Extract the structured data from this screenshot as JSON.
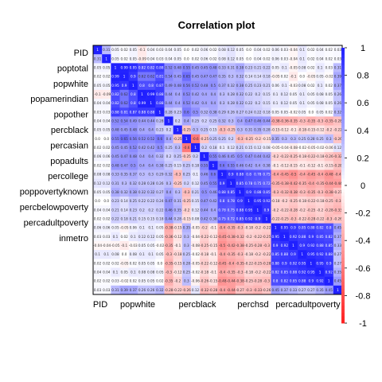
{
  "chart_data": {
    "type": "heatmap",
    "title": "Correlation plot",
    "variables": [
      "PID",
      "poptotal",
      "popwhite",
      "popamerindian",
      "popother",
      "percblack",
      "percasian",
      "popadults",
      "percollege",
      "poppovertyknown",
      "percbelowpoverty",
      "percadultpoverty",
      "inmetro"
    ],
    "x_tick_labels": [
      "PID",
      "popwhite",
      "percblack",
      "perchsd",
      "percadultpoverty"
    ],
    "colorbar": {
      "min": -1,
      "max": 1,
      "ticks": [
        "1",
        "0.8",
        "0.6",
        "0.4",
        "0.2",
        "0",
        "-0.2",
        "-0.4",
        "-0.6",
        "-0.8",
        "-1"
      ]
    },
    "colors": {
      "positive": "#2020ff",
      "negative": "#ff2020",
      "neutral": "#ffffff",
      "frame": "#000000"
    },
    "matrix": [
      [
        1.0,
        0.31,
        0.05,
        0.02,
        0.05,
        -0.1,
        0.04,
        0.03,
        0.04,
        0.05,
        0.0,
        0.02,
        0.06,
        0.02,
        0.08,
        0.12,
        0.05,
        0.0,
        0.04,
        0.02,
        0.06,
        0.03,
        -0.04,
        0.1,
        0.02,
        0.04,
        0.02,
        0.03
      ],
      [
        0.31,
        1.0,
        0.05,
        0.02,
        0.05,
        -0.09,
        0.04,
        0.03,
        0.04,
        0.05,
        0.0,
        0.02,
        0.06,
        0.02,
        0.08,
        0.12,
        0.05,
        0.0,
        0.04,
        0.02,
        0.06,
        0.03,
        -0.04,
        0.1,
        0.02,
        0.04,
        0.02,
        0.03
      ],
      [
        0.05,
        0.05,
        1.0,
        0.99,
        0.95,
        0.82,
        0.82,
        0.88,
        0.52,
        0.48,
        0.55,
        0.45,
        0.45,
        0.48,
        0.33,
        0.31,
        0.38,
        0.23,
        0.21,
        0.22,
        0.05,
        0.1,
        -0.05,
        0.08,
        0.02,
        0.1,
        0.03,
        0.31
      ],
      [
        0.02,
        0.02,
        0.99,
        1.0,
        0.9,
        0.62,
        0.62,
        0.81,
        0.54,
        0.45,
        0.65,
        0.45,
        0.47,
        0.47,
        0.35,
        0.3,
        0.32,
        0.14,
        0.14,
        0.18,
        -0.05,
        0.02,
        -0.1,
        0.0,
        -0.05,
        0.05,
        -0.02,
        0.39
      ],
      [
        0.05,
        0.05,
        0.95,
        0.9,
        1.0,
        0.8,
        0.8,
        0.87,
        0.49,
        0.48,
        0.56,
        0.52,
        0.48,
        0.5,
        0.37,
        0.32,
        0.38,
        0.25,
        0.23,
        0.21,
        0.06,
        0.1,
        -0.03,
        0.08,
        0.02,
        0.1,
        0.02,
        0.37
      ],
      [
        -0.1,
        -0.09,
        0.82,
        0.62,
        0.8,
        1.0,
        0.99,
        0.88,
        0.44,
        0.4,
        0.52,
        0.42,
        0.4,
        0.4,
        0.3,
        0.28,
        0.32,
        0.22,
        0.2,
        0.15,
        0.1,
        0.12,
        0.05,
        0.1,
        0.05,
        0.08,
        0.05,
        0.26
      ],
      [
        0.04,
        0.04,
        0.82,
        0.62,
        0.8,
        0.99,
        1.0,
        0.88,
        0.44,
        0.4,
        0.52,
        0.42,
        0.4,
        0.4,
        0.3,
        0.28,
        0.32,
        0.22,
        0.2,
        0.15,
        0.1,
        0.12,
        0.05,
        0.1,
        0.05,
        0.08,
        0.05,
        0.26
      ],
      [
        0.03,
        0.03,
        0.88,
        0.81,
        0.87,
        0.88,
        0.88,
        1.0,
        0.28,
        0.23,
        0.6,
        0.5,
        0.32,
        0.38,
        0.29,
        0.26,
        0.27,
        0.24,
        0.22,
        0.18,
        0.05,
        0.05,
        -0.02,
        0.05,
        0.0,
        0.05,
        0.02,
        0.32
      ],
      [
        0.04,
        0.04,
        0.52,
        0.54,
        0.49,
        0.44,
        0.44,
        0.28,
        1.0,
        0.2,
        0.4,
        0.25,
        0.2,
        0.25,
        0.32,
        0.3,
        0.4,
        0.47,
        0.46,
        0.44,
        -0.38,
        -0.36,
        -0.35,
        -0.3,
        -0.35,
        -0.3,
        -0.35,
        -0.28
      ],
      [
        0.05,
        0.05,
        0.48,
        0.45,
        0.48,
        0.4,
        0.4,
        0.23,
        0.2,
        1.0,
        -0.25,
        0.3,
        0.25,
        0.15,
        -0.3,
        -0.25,
        0.3,
        0.31,
        0.35,
        0.28,
        -0.15,
        -0.12,
        -0.1,
        -0.18,
        -0.15,
        -0.12,
        -0.2,
        -0.22
      ],
      [
        0.0,
        0.0,
        0.55,
        0.65,
        0.56,
        0.52,
        0.52,
        0.6,
        0.4,
        -0.25,
        1.0,
        -0.6,
        -0.25,
        0.25,
        0.25,
        0.2,
        -0.3,
        -0.25,
        -0.2,
        -0.15,
        0.35,
        0.3,
        0.3,
        0.25,
        0.28,
        0.25,
        0.3,
        -0.26
      ],
      [
        0.02,
        0.02,
        0.45,
        0.45,
        0.52,
        0.42,
        0.42,
        0.5,
        0.25,
        0.3,
        -0.6,
        1.0,
        0.2,
        0.18,
        0.1,
        0.12,
        0.21,
        0.15,
        0.12,
        0.08,
        -0.05,
        -0.04,
        -0.08,
        -0.02,
        -0.05,
        -0.02,
        -0.06,
        0.12
      ],
      [
        0.06,
        0.06,
        0.45,
        0.47,
        0.48,
        0.4,
        0.4,
        0.32,
        0.2,
        0.25,
        -0.25,
        0.2,
        1.0,
        0.55,
        0.46,
        0.45,
        0.5,
        0.47,
        0.44,
        0.42,
        -0.2,
        -0.22,
        -0.25,
        -0.18,
        -0.22,
        -0.18,
        -0.26,
        -0.32
      ],
      [
        0.02,
        0.02,
        0.48,
        0.47,
        0.5,
        0.4,
        0.4,
        0.38,
        0.25,
        0.15,
        0.25,
        0.18,
        0.55,
        1.0,
        0.6,
        0.55,
        0.46,
        0.42,
        0.4,
        0.38,
        -0.1,
        -0.12,
        -0.15,
        -0.1,
        -0.12,
        -0.1,
        -0.15,
        -0.28
      ],
      [
        0.08,
        0.08,
        0.33,
        0.35,
        0.37,
        0.3,
        0.3,
        0.29,
        0.32,
        -0.3,
        0.25,
        0.1,
        0.46,
        0.6,
        1.0,
        0.9,
        0.88,
        0.8,
        0.78,
        0.75,
        -0.4,
        -0.45,
        -0.5,
        -0.4,
        -0.45,
        -0.4,
        -0.48,
        -0.4
      ],
      [
        0.12,
        0.12,
        0.31,
        0.3,
        0.32,
        0.28,
        0.28,
        0.26,
        0.3,
        -0.25,
        0.2,
        0.12,
        0.45,
        0.55,
        0.9,
        1.0,
        0.85,
        0.78,
        0.75,
        0.72,
        -0.35,
        -0.38,
        -0.42,
        -0.35,
        -0.4,
        -0.35,
        -0.44,
        -0.44
      ],
      [
        0.05,
        0.05,
        0.38,
        0.32,
        0.38,
        0.32,
        0.32,
        0.27,
        0.4,
        0.3,
        -0.3,
        0.21,
        0.5,
        0.46,
        0.88,
        0.85,
        1.0,
        0.9,
        0.88,
        0.85,
        -0.3,
        -0.32,
        -0.38,
        -0.3,
        -0.35,
        -0.3,
        -0.38,
        -0.27
      ],
      [
        0.0,
        0.0,
        0.23,
        0.14,
        0.25,
        0.22,
        0.22,
        0.24,
        0.47,
        0.31,
        -0.25,
        0.15,
        0.47,
        0.42,
        0.8,
        0.78,
        0.9,
        1.0,
        0.95,
        0.92,
        -0.18,
        -0.2,
        -0.25,
        -0.18,
        -0.22,
        -0.18,
        -0.25,
        -0.3
      ],
      [
        0.04,
        0.04,
        0.21,
        0.14,
        0.23,
        0.2,
        0.2,
        0.22,
        0.46,
        0.35,
        -0.2,
        0.12,
        0.44,
        0.4,
        0.78,
        0.75,
        0.88,
        0.95,
        1.0,
        0.9,
        -0.2,
        -0.22,
        -0.28,
        -0.2,
        -0.25,
        -0.2,
        -0.28,
        -0.33
      ],
      [
        0.02,
        0.02,
        0.22,
        0.18,
        0.21,
        0.15,
        0.15,
        0.18,
        0.44,
        0.28,
        -0.15,
        0.08,
        0.42,
        0.38,
        0.75,
        0.72,
        0.85,
        0.92,
        0.9,
        1.0,
        -0.22,
        -0.25,
        -0.3,
        -0.22,
        -0.28,
        -0.22,
        -0.3,
        -0.26
      ],
      [
        0.06,
        0.06,
        0.05,
        -0.05,
        0.06,
        0.1,
        0.1,
        0.05,
        -0.38,
        -0.15,
        0.35,
        -0.05,
        -0.2,
        -0.1,
        -0.4,
        -0.35,
        -0.3,
        -0.18,
        -0.2,
        -0.22,
        1.0,
        0.95,
        0.9,
        0.85,
        0.88,
        0.82,
        0.8,
        0.45
      ],
      [
        0.03,
        0.03,
        0.1,
        0.02,
        0.1,
        0.12,
        0.12,
        0.05,
        -0.36,
        -0.12,
        0.3,
        -0.04,
        -0.22,
        -0.12,
        -0.45,
        -0.38,
        -0.32,
        -0.2,
        -0.22,
        -0.25,
        0.95,
        1.0,
        0.92,
        0.88,
        0.9,
        0.85,
        0.82,
        0.37
      ],
      [
        -0.04,
        -0.04,
        -0.05,
        -0.1,
        -0.03,
        0.05,
        0.05,
        -0.02,
        -0.35,
        -0.1,
        0.3,
        -0.08,
        -0.25,
        -0.15,
        -0.5,
        -0.42,
        -0.38,
        -0.25,
        -0.28,
        -0.3,
        0.9,
        0.92,
        1.0,
        0.9,
        0.92,
        0.88,
        0.85,
        0.33
      ],
      [
        0.1,
        0.1,
        0.08,
        0.0,
        0.08,
        0.1,
        0.1,
        0.05,
        -0.3,
        -0.18,
        0.25,
        -0.02,
        -0.18,
        -0.1,
        -0.4,
        -0.35,
        -0.3,
        -0.18,
        -0.2,
        -0.22,
        0.85,
        0.88,
        0.9,
        1.0,
        0.95,
        0.92,
        0.88,
        0.27
      ],
      [
        0.02,
        0.02,
        0.02,
        -0.05,
        0.02,
        0.05,
        0.05,
        0.0,
        -0.35,
        -0.15,
        0.28,
        -0.05,
        -0.22,
        -0.12,
        -0.45,
        -0.4,
        -0.35,
        -0.22,
        -0.25,
        -0.28,
        0.88,
        0.9,
        0.92,
        0.95,
        1.0,
        0.95,
        0.9,
        0.27
      ],
      [
        0.04,
        0.04,
        0.1,
        0.05,
        0.1,
        0.08,
        0.08,
        0.05,
        -0.3,
        -0.12,
        0.25,
        -0.02,
        -0.18,
        -0.1,
        -0.4,
        -0.35,
        -0.3,
        -0.18,
        -0.2,
        -0.22,
        0.82,
        0.85,
        0.88,
        0.92,
        0.95,
        1.0,
        0.92,
        0.35
      ],
      [
        0.02,
        0.02,
        0.03,
        -0.02,
        0.02,
        0.05,
        0.05,
        0.02,
        -0.35,
        -0.2,
        0.3,
        -0.06,
        -0.26,
        -0.15,
        -0.48,
        -0.44,
        -0.38,
        -0.25,
        -0.28,
        -0.3,
        0.8,
        0.82,
        0.85,
        0.88,
        0.9,
        0.92,
        1.0,
        0.45
      ],
      [
        0.03,
        0.03,
        0.31,
        0.39,
        0.37,
        0.26,
        0.26,
        0.32,
        -0.28,
        -0.22,
        -0.26,
        0.12,
        -0.32,
        -0.28,
        -0.4,
        -0.44,
        -0.27,
        -0.3,
        -0.33,
        -0.26,
        0.45,
        0.37,
        0.33,
        0.27,
        0.27,
        0.35,
        0.45,
        1.0
      ]
    ]
  }
}
